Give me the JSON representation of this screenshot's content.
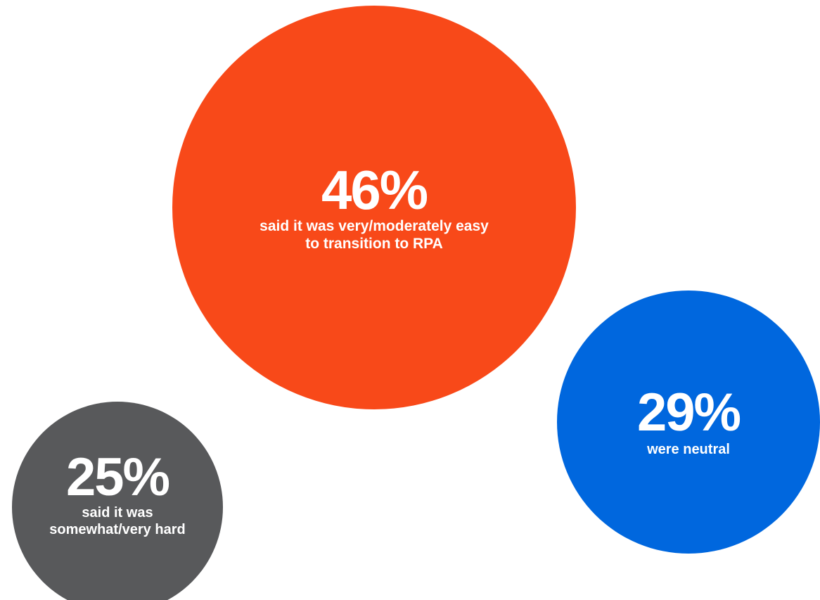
{
  "chart_data": {
    "type": "bubble",
    "unit": "%",
    "items": [
      {
        "id": "orange",
        "value": 46,
        "label": "46%",
        "description": "said it was very/moderately easy to transition to RPA",
        "color": "#f84919"
      },
      {
        "id": "blue",
        "value": 29,
        "label": "29%",
        "description": "were neutral",
        "color": "#0067de"
      },
      {
        "id": "gray",
        "value": 25,
        "label": "25%",
        "description": "said it was somewhat/very hard",
        "color": "#58595b"
      }
    ]
  }
}
